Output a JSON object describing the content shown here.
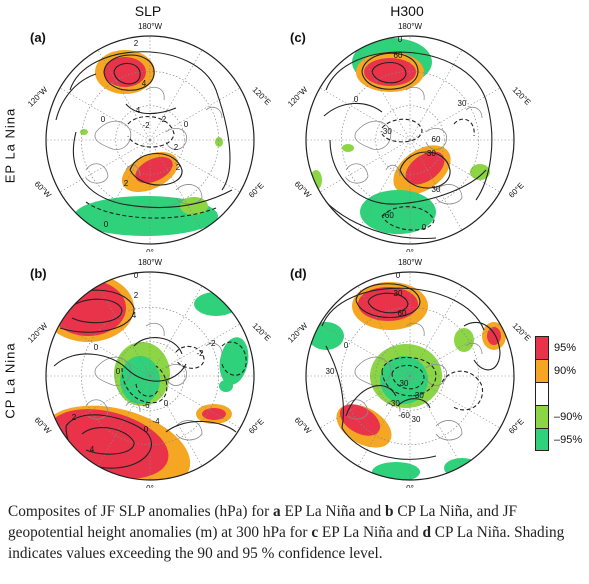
{
  "columns": [
    "SLP",
    "H300"
  ],
  "rows": [
    "EP La Nina",
    "CP La Nina"
  ],
  "panels": [
    {
      "id": "a",
      "label": "(a)",
      "contours": [
        "2",
        "4",
        "0",
        "2",
        "0",
        "-2",
        "2",
        "2",
        "0",
        "4",
        "2"
      ]
    },
    {
      "id": "b",
      "label": "(b)",
      "contours": [
        "0",
        "2",
        "4",
        "0",
        "0",
        "-2",
        "-2",
        "0",
        "0",
        "-6",
        "-4",
        "4",
        "2"
      ]
    },
    {
      "id": "c",
      "label": "(c)",
      "contours": [
        "0",
        "60",
        "0",
        "30",
        "-30",
        "60",
        "-30",
        "30",
        "-60",
        "0"
      ]
    },
    {
      "id": "d",
      "label": "(d)",
      "contours": [
        "0",
        "30",
        "60",
        "0",
        "30",
        "-30",
        "-60",
        "30",
        "-30",
        "30"
      ]
    }
  ],
  "axis_labels": {
    "top": "180°W",
    "left_upper": "120°W",
    "right_upper": "120°E",
    "left_lower": "60°W",
    "right_lower": "60°E",
    "bottom": "0°"
  },
  "legend": [
    {
      "label": "95%",
      "color": "#e8334a"
    },
    {
      "label": "90%",
      "color": "#f5a623"
    },
    {
      "label": "",
      "color": "#ffffff"
    },
    {
      "label": "–90%",
      "color": "#8cd645"
    },
    {
      "label": "–95%",
      "color": "#2fd17a"
    }
  ],
  "caption": {
    "t1": "Composites of JF SLP anomalies (hPa) for ",
    "b1": "a",
    "t2": " EP La Niña and ",
    "b2": "b",
    "t3": " CP La Niña, and JF geopotential height anomalies (m) at 300 hPa for ",
    "b3": "c",
    "t4": " EP La Niña and ",
    "b4": "d",
    "t5": " CP La Niña. Shading indicates values exceeding the 90 and 95 % confidence level."
  }
}
